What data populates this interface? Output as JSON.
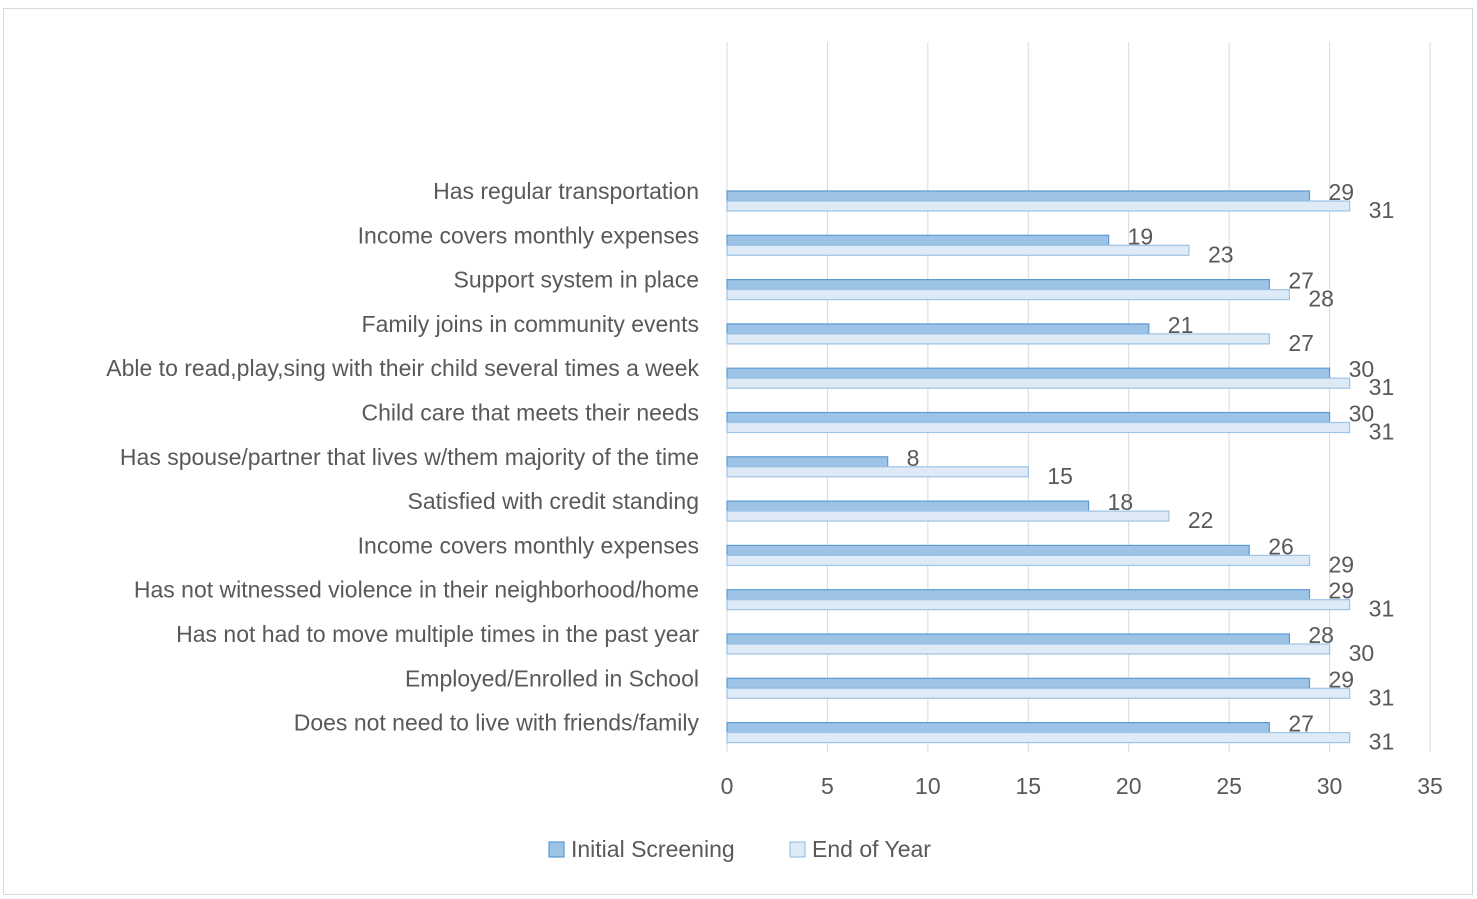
{
  "chart_data": {
    "type": "bar",
    "orientation": "horizontal",
    "categories": [
      "Has regular transportation",
      "Income covers monthly expenses",
      "Support system in place",
      "Family joins in community events",
      "Able to read,play,sing with their child several times a week",
      "Child care that meets their needs",
      "Has spouse/partner that lives w/them majority of the time",
      "Satisfied with credit standing",
      "Income covers monthly expenses",
      "Has not witnessed violence in their neighborhood/home",
      "Has not had to move multiple times in the past year",
      "Employed/Enrolled in School",
      "Does not need to live with friends/family"
    ],
    "series": [
      {
        "name": "Initial Screening",
        "values": [
          29,
          19,
          27,
          21,
          30,
          30,
          8,
          18,
          26,
          29,
          28,
          29,
          27
        ]
      },
      {
        "name": "End of Year",
        "values": [
          31,
          23,
          28,
          27,
          31,
          31,
          15,
          22,
          29,
          31,
          30,
          31,
          31
        ]
      }
    ],
    "xlim": [
      0,
      35
    ],
    "xticks": [
      0,
      5,
      10,
      15,
      20,
      25,
      30,
      35
    ],
    "title": "",
    "xlabel": "",
    "ylabel": "",
    "grid": "vertical",
    "legend_position": "bottom",
    "colors": {
      "initial_fill": "#9dc3e6",
      "initial_stroke": "#5b9bd5",
      "end_fill": "#deebf7",
      "end_stroke": "#9dc3e6",
      "gridline": "#d9d9d9",
      "text": "#595959"
    }
  }
}
